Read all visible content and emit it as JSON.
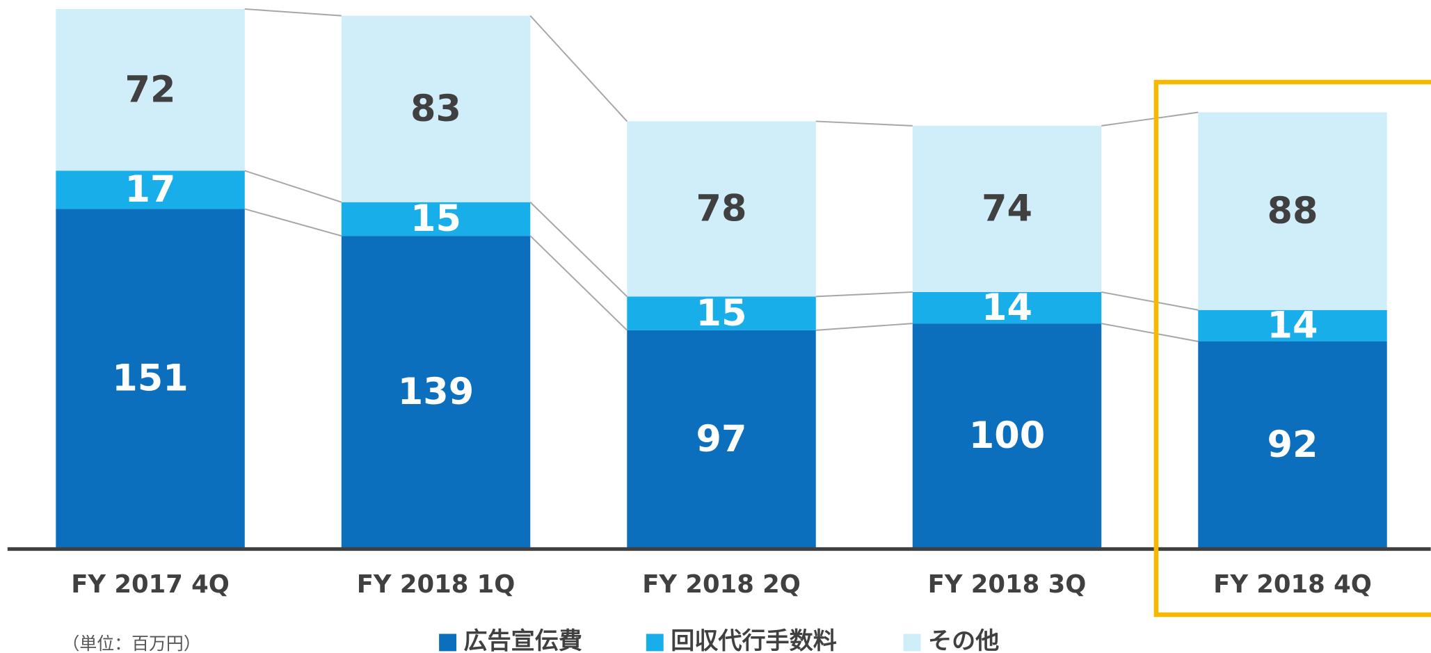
{
  "chart_data": {
    "type": "stacked-bar",
    "categories": [
      "FY 2017 4Q",
      "FY 2018 1Q",
      "FY 2018 2Q",
      "FY 2018 3Q",
      "FY 2018 4Q"
    ],
    "series": [
      {
        "name": "広告宣伝費",
        "color": "#0b6fbd",
        "values": [
          151,
          139,
          97,
          100,
          92
        ]
      },
      {
        "name": "回収代行手数料",
        "color": "#17aeea",
        "values": [
          17,
          15,
          15,
          14,
          14
        ]
      },
      {
        "name": "その他",
        "color": "#d0edfa",
        "values": [
          72,
          83,
          78,
          74,
          88
        ]
      }
    ],
    "ylim": [
      0,
      244
    ],
    "unit_note": "（単位：百万円）"
  }
}
